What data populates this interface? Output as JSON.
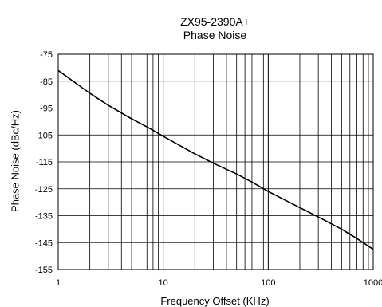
{
  "chart_data": {
    "type": "line",
    "title": "ZX95-2390A+",
    "subtitle": "Phase Noise",
    "xlabel": "Frequency Offset (KHz)",
    "ylabel": "Phase Noise (dBc/Hz)",
    "x_scale": "log",
    "xlim": [
      1,
      1000
    ],
    "ylim": [
      -155,
      -75
    ],
    "grid": true,
    "x_ticks": [
      "1",
      "10",
      "100",
      "1000"
    ],
    "y_ticks": [
      "-75",
      "-85",
      "-95",
      "-105",
      "-115",
      "-125",
      "-135",
      "-145",
      "-155"
    ],
    "series": [
      {
        "x": [
          1,
          1.5,
          2,
          3,
          5,
          7,
          10,
          20,
          30,
          50,
          70,
          100,
          200,
          300,
          500,
          700,
          1000
        ],
        "y": [
          -81,
          -86,
          -89.5,
          -94,
          -99,
          -102,
          -105.5,
          -112,
          -115.5,
          -119.5,
          -122.5,
          -126,
          -132,
          -135.5,
          -140,
          -143.5,
          -147.5
        ]
      }
    ]
  }
}
